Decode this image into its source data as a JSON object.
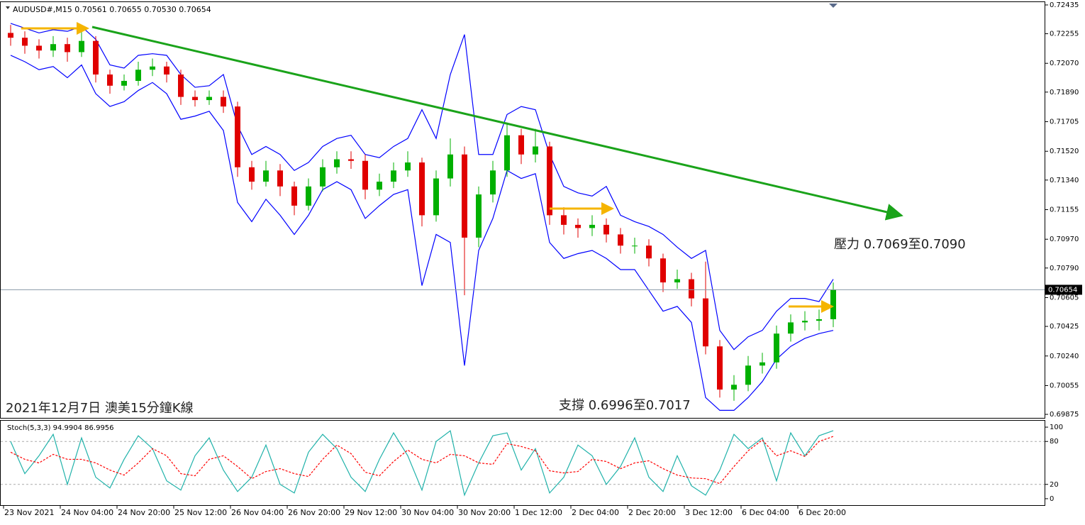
{
  "chart_data": [
    {
      "type": "candlestick",
      "title": "AUDUSD#,M15 0.70561 0.70655 0.70530 0.70654",
      "annotations": [
        "2021年12月7日 澳美15分鐘K線",
        "壓力 0.7069至0.7090",
        "支撐 0.6996至0.7017"
      ],
      "categories": [
        "23 Nov 2021",
        null,
        null,
        null,
        "24 Nov 04:00",
        null,
        null,
        null,
        "24 Nov 20:00",
        null,
        null,
        null,
        "25 Nov 12:00",
        null,
        null,
        null,
        "26 Nov 04:00",
        null,
        null,
        null,
        "26 Nov 20:00",
        null,
        null,
        null,
        "29 Nov 12:00",
        null,
        null,
        null,
        "30 Nov 04:00",
        null,
        null,
        null,
        "30 Nov 20:00",
        null,
        null,
        null,
        "1 Dec 12:00",
        null,
        null,
        null,
        "2 Dec 04:00",
        null,
        null,
        null,
        "2 Dec 20:00",
        null,
        null,
        null,
        "3 Dec 12:00",
        null,
        null,
        null,
        "6 Dec 04:00",
        null,
        null,
        null,
        "6 Dec 20:00",
        null,
        null
      ],
      "open": [
        0.7226,
        0.7223,
        0.7218,
        0.7215,
        0.7219,
        0.7214,
        0.7221,
        0.72,
        0.7193,
        0.7196,
        0.7203,
        0.7205,
        0.72,
        0.7186,
        0.7184,
        0.7186,
        0.718,
        0.7142,
        0.7133,
        0.714,
        0.713,
        0.7118,
        0.713,
        0.7142,
        0.7147,
        0.7146,
        0.7128,
        0.7133,
        0.714,
        0.7145,
        0.7112,
        0.7135,
        0.715,
        0.7098,
        0.7125,
        0.714,
        0.7162,
        0.715,
        0.7155,
        0.7112,
        0.7106,
        0.7104,
        0.7106,
        0.71,
        0.7093,
        0.7093,
        0.7085,
        0.707,
        0.7072,
        0.706,
        0.703,
        0.7003,
        0.7006,
        0.7018,
        0.702,
        0.7038,
        0.7045,
        0.7046,
        0.7047
      ],
      "high": [
        0.7231,
        0.7227,
        0.7222,
        0.7224,
        0.7223,
        0.7228,
        0.7224,
        0.7203,
        0.72,
        0.7208,
        0.721,
        0.7208,
        0.7203,
        0.719,
        0.719,
        0.719,
        0.7183,
        0.7146,
        0.7146,
        0.7144,
        0.7133,
        0.7135,
        0.7147,
        0.7152,
        0.7152,
        0.715,
        0.7138,
        0.7145,
        0.7152,
        0.7148,
        0.714,
        0.716,
        0.7155,
        0.713,
        0.7146,
        0.717,
        0.7166,
        0.7166,
        0.7158,
        0.7117,
        0.711,
        0.7112,
        0.711,
        0.7104,
        0.7098,
        0.7097,
        0.7088,
        0.7078,
        0.7076,
        0.7083,
        0.7034,
        0.7012,
        0.7024,
        0.7026,
        0.7043,
        0.705,
        0.7052,
        0.7053,
        0.707
      ],
      "low": [
        0.7218,
        0.7213,
        0.721,
        0.7211,
        0.7208,
        0.7211,
        0.7195,
        0.7188,
        0.719,
        0.7193,
        0.7199,
        0.7195,
        0.7181,
        0.718,
        0.7181,
        0.7176,
        0.7136,
        0.7128,
        0.713,
        0.7124,
        0.7112,
        0.7115,
        0.7127,
        0.7138,
        0.7141,
        0.7122,
        0.7124,
        0.7129,
        0.7136,
        0.7105,
        0.7108,
        0.713,
        0.7062,
        0.7092,
        0.712,
        0.7136,
        0.7144,
        0.7145,
        0.7106,
        0.71,
        0.7098,
        0.7099,
        0.7095,
        0.7088,
        0.7088,
        0.708,
        0.7064,
        0.7066,
        0.7055,
        0.7025,
        0.6998,
        0.6996,
        0.7002,
        0.7013,
        0.7016,
        0.7033,
        0.704,
        0.704,
        0.7042
      ],
      "close": [
        0.7223,
        0.7218,
        0.7215,
        0.7219,
        0.7214,
        0.7221,
        0.72,
        0.7193,
        0.7196,
        0.7203,
        0.7205,
        0.72,
        0.7186,
        0.7184,
        0.7186,
        0.718,
        0.7142,
        0.7133,
        0.714,
        0.713,
        0.7118,
        0.713,
        0.7142,
        0.7147,
        0.7146,
        0.7128,
        0.7133,
        0.714,
        0.7145,
        0.7112,
        0.7135,
        0.715,
        0.7098,
        0.7125,
        0.714,
        0.7162,
        0.715,
        0.7155,
        0.7112,
        0.7106,
        0.7104,
        0.7106,
        0.71,
        0.7093,
        0.7093,
        0.7085,
        0.707,
        0.7072,
        0.706,
        0.703,
        0.7003,
        0.7006,
        0.7018,
        0.702,
        0.7038,
        0.7045,
        0.7046,
        0.7047,
        0.70654
      ],
      "up_color": "#00b000",
      "down_color": "#e00000",
      "bands": [
        {
          "color": "#0000ff",
          "values": [
            0.7232,
            0.7229,
            0.7226,
            0.7228,
            0.7227,
            0.723,
            0.7222,
            0.7206,
            0.7204,
            0.7212,
            0.7213,
            0.7212,
            0.72,
            0.7192,
            0.7193,
            0.72,
            0.7168,
            0.715,
            0.7155,
            0.715,
            0.714,
            0.7145,
            0.7155,
            0.716,
            0.7162,
            0.715,
            0.7148,
            0.7155,
            0.716,
            0.7178,
            0.716,
            0.72,
            0.7225,
            0.715,
            0.715,
            0.7175,
            0.718,
            0.7178,
            0.715,
            0.713,
            0.7126,
            0.7124,
            0.713,
            0.7112,
            0.7108,
            0.7105,
            0.71,
            0.7092,
            0.7085,
            0.709,
            0.704,
            0.7028,
            0.7036,
            0.704,
            0.7052,
            0.706,
            0.706,
            0.7058,
            0.7072
          ]
        },
        {
          "color": "#0000ff",
          "values": [
            0.7212,
            0.7208,
            0.7203,
            0.7205,
            0.7198,
            0.7206,
            0.7188,
            0.718,
            0.7183,
            0.719,
            0.7195,
            0.7188,
            0.7172,
            0.7174,
            0.7177,
            0.7165,
            0.712,
            0.7108,
            0.7122,
            0.7112,
            0.71,
            0.7112,
            0.7128,
            0.7133,
            0.7128,
            0.711,
            0.7118,
            0.7125,
            0.7128,
            0.7068,
            0.71,
            0.7095,
            0.7018,
            0.709,
            0.711,
            0.714,
            0.7135,
            0.7138,
            0.7095,
            0.7085,
            0.7088,
            0.709,
            0.7085,
            0.7078,
            0.7078,
            0.7065,
            0.7052,
            0.7055,
            0.7045,
            0.6998,
            0.699,
            0.699,
            0.6998,
            0.7008,
            0.7022,
            0.703,
            0.7035,
            0.7038,
            0.704
          ]
        }
      ],
      "last_price": 0.70654,
      "ylim": [
        0.69853,
        0.72457
      ],
      "yticks": [
        0.72435,
        0.72255,
        {
          "value": 0.7207,
          "label": "0.72070"
        },
        {
          "value": 0.7189,
          "label": "0.71890"
        },
        0.71705,
        {
          "value": 0.7152,
          "label": "0.71520"
        },
        {
          "value": 0.7134,
          "label": "0.71340"
        },
        0.71155,
        {
          "value": 0.7097,
          "label": "0.70970"
        },
        {
          "value": 0.7079,
          "label": "0.70790"
        },
        0.70605,
        0.70425,
        {
          "value": 0.7024,
          "label": "0.70240"
        },
        0.70055,
        0.69875
      ]
    },
    {
      "type": "line",
      "title": "Stoch(5,3,3) 94.9904 86.9956",
      "series": [
        {
          "color": "#20b2aa",
          "values": [
            80,
            35,
            60,
            90,
            20,
            85,
            30,
            15,
            55,
            88,
            70,
            25,
            12,
            60,
            85,
            40,
            10,
            30,
            75,
            20,
            8,
            65,
            90,
            70,
            30,
            10,
            55,
            92,
            60,
            12,
            80,
            95,
            5,
            50,
            88,
            92,
            40,
            70,
            8,
            30,
            75,
            60,
            20,
            45,
            85,
            30,
            10,
            60,
            18,
            5,
            40,
            90,
            70,
            85,
            25,
            92,
            60,
            88,
            95
          ]
        },
        {
          "color": "#ff0000",
          "dashed": true,
          "values": [
            65,
            55,
            50,
            62,
            55,
            55,
            50,
            40,
            33,
            50,
            70,
            60,
            35,
            32,
            55,
            60,
            45,
            28,
            38,
            42,
            35,
            31,
            55,
            75,
            63,
            37,
            32,
            52,
            68,
            55,
            50,
            62,
            60,
            50,
            48,
            77,
            73,
            67,
            39,
            36,
            38,
            55,
            52,
            42,
            50,
            53,
            42,
            33,
            29,
            28,
            21,
            45,
            67,
            82,
            60,
            67,
            59,
            80,
            87
          ]
        }
      ],
      "levels": [
        20,
        80
      ],
      "ylim": [
        -9,
        108
      ],
      "yticks": [
        0,
        20,
        80,
        100
      ]
    }
  ]
}
